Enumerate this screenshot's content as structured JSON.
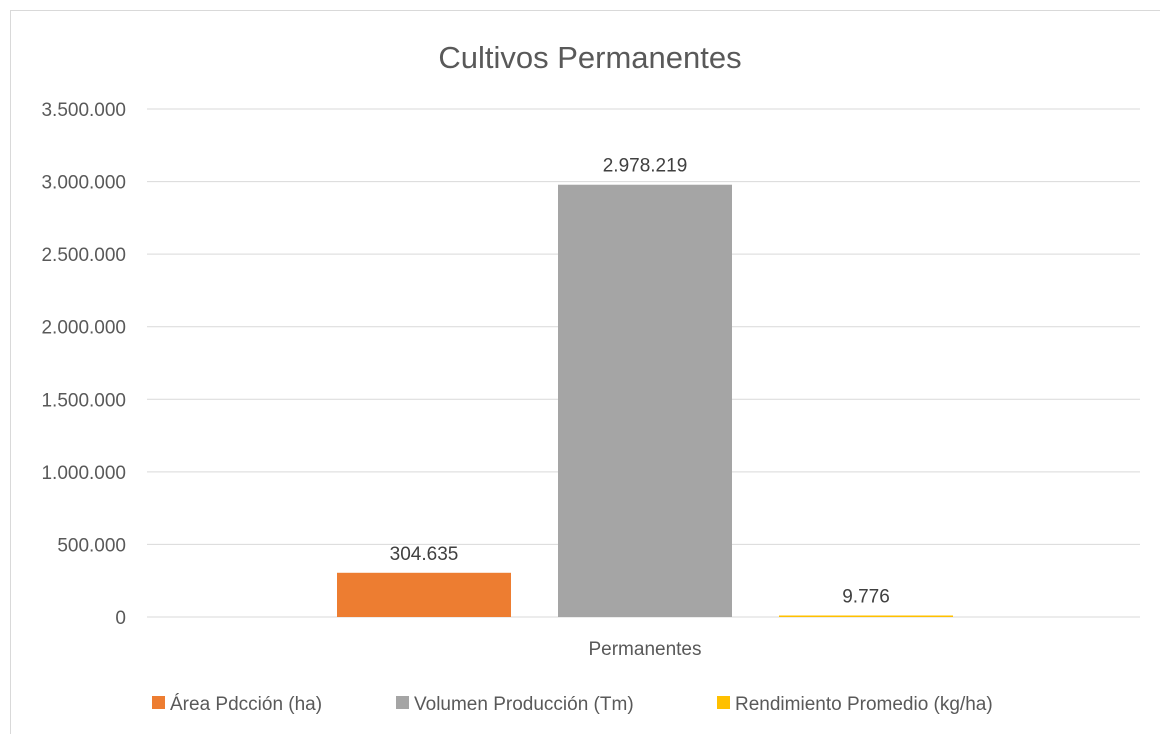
{
  "chart_data": {
    "type": "bar",
    "title": "Cultivos Permanentes",
    "categories": [
      "Permanentes"
    ],
    "series": [
      {
        "name": "Área Pdcción (ha)",
        "values": [
          304635
        ],
        "label": "304.635",
        "color": "#ED7D31"
      },
      {
        "name": "Volumen Producción (Tm)",
        "values": [
          2978219
        ],
        "label": "2.978.219",
        "color": "#A5A5A5"
      },
      {
        "name": "Rendimiento Promedio (kg/ha)",
        "values": [
          9776
        ],
        "label": "9.776",
        "color": "#FFC000"
      }
    ],
    "ylim": [
      0,
      3500000
    ],
    "yticks": [
      0,
      500000,
      1000000,
      1500000,
      2000000,
      2500000,
      3000000,
      3500000
    ],
    "ytick_labels": [
      "0",
      "500.000",
      "1.000.000",
      "1.500.000",
      "2.000.000",
      "2.500.000",
      "3.000.000",
      "3.500.000"
    ],
    "grid": true,
    "legend_position": "bottom"
  }
}
